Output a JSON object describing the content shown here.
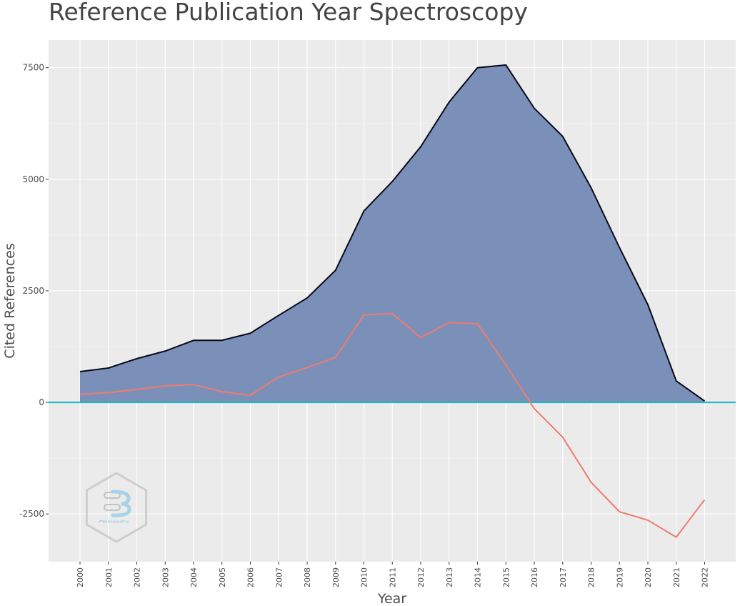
{
  "chart_data": {
    "type": "area",
    "title": "Reference Publication Year Spectroscopy",
    "xlabel": "Year",
    "ylabel": "Cited References",
    "x": [
      "2000",
      "2001",
      "2002",
      "2003",
      "2004",
      "2005",
      "2006",
      "2007",
      "2008",
      "2009",
      "2010",
      "2011",
      "2012",
      "2013",
      "2014",
      "2015",
      "2016",
      "2017",
      "2018",
      "2019",
      "2020",
      "2021",
      "2022"
    ],
    "y_ticks": [
      -2500,
      0,
      2500,
      5000,
      7500
    ],
    "y_tick_labels": [
      "-2500",
      "0",
      "2500",
      "5000",
      "7500"
    ],
    "ylim": [
      -3570,
      8120
    ],
    "grid": true,
    "legend": "none",
    "series": [
      {
        "values": [
          690,
          770,
          980,
          1150,
          1390,
          1390,
          1550,
          1950,
          2340,
          2960,
          4290,
          4950,
          5730,
          6730,
          7500,
          7560,
          6590,
          5960,
          4810,
          3470,
          2190,
          480,
          30
        ],
        "color": "#7a90b8",
        "line_color": "#0a0a1a"
      },
      {
        "values": [
          180,
          220,
          290,
          370,
          400,
          240,
          160,
          570,
          780,
          1010,
          1960,
          1990,
          1450,
          1790,
          1760,
          840,
          -140,
          -780,
          -1790,
          -2450,
          -2640,
          -3020,
          -2180
        ],
        "color": "#f07b72"
      }
    ],
    "reference_line": {
      "y": 0,
      "color": "#20b8c8"
    },
    "background_color": "#ebebeb",
    "watermark": {
      "brand_text": "bibliometrix"
    }
  }
}
